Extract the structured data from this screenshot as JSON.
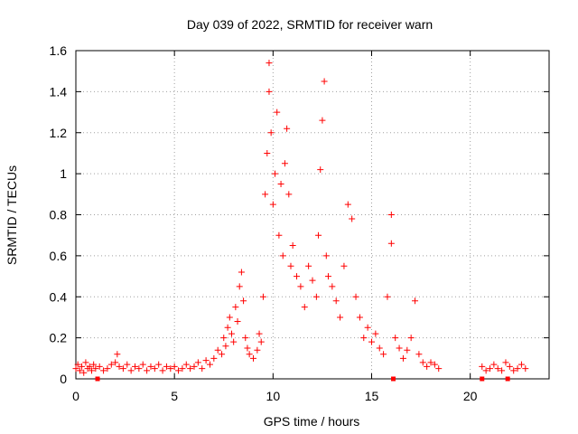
{
  "chart_data": {
    "type": "scatter",
    "title": "Day 039 of 2022, SRMTID for receiver warn",
    "xlabel": "GPS time / hours",
    "ylabel": "SRMTID / TECUs",
    "xlim": [
      0,
      24
    ],
    "ylim": [
      0,
      1.6
    ],
    "xticks": [
      0,
      5,
      10,
      15,
      20
    ],
    "yticks": [
      0,
      0.2,
      0.4,
      0.6,
      0.8,
      1,
      1.2,
      1.4,
      1.6
    ],
    "xtick_labels": [
      "0",
      "5",
      "10",
      "15",
      "20"
    ],
    "ytick_labels": [
      "0",
      "0.2",
      "0.4",
      "0.6",
      "0.8",
      "1",
      "1.2",
      "1.4",
      "1.6"
    ],
    "grid": true,
    "marker": "plus",
    "color": "#ff0000",
    "series": [
      {
        "name": "SRMTID",
        "points": [
          [
            0.0,
            0.05
          ],
          [
            0.1,
            0.07
          ],
          [
            0.2,
            0.04
          ],
          [
            0.3,
            0.06
          ],
          [
            0.4,
            0.03
          ],
          [
            0.5,
            0.08
          ],
          [
            0.6,
            0.05
          ],
          [
            0.7,
            0.06
          ],
          [
            0.8,
            0.04
          ],
          [
            0.9,
            0.07
          ],
          [
            1.0,
            0.05
          ],
          [
            1.2,
            0.06
          ],
          [
            1.4,
            0.04
          ],
          [
            1.6,
            0.05
          ],
          [
            1.8,
            0.07
          ],
          [
            2.0,
            0.08
          ],
          [
            2.1,
            0.12
          ],
          [
            2.2,
            0.06
          ],
          [
            2.4,
            0.05
          ],
          [
            2.6,
            0.07
          ],
          [
            2.8,
            0.04
          ],
          [
            3.0,
            0.06
          ],
          [
            3.2,
            0.05
          ],
          [
            3.4,
            0.07
          ],
          [
            3.6,
            0.04
          ],
          [
            3.8,
            0.06
          ],
          [
            4.0,
            0.05
          ],
          [
            4.2,
            0.07
          ],
          [
            4.4,
            0.04
          ],
          [
            4.6,
            0.06
          ],
          [
            4.8,
            0.05
          ],
          [
            5.0,
            0.06
          ],
          [
            5.2,
            0.04
          ],
          [
            5.4,
            0.05
          ],
          [
            5.6,
            0.07
          ],
          [
            5.8,
            0.05
          ],
          [
            6.0,
            0.06
          ],
          [
            6.2,
            0.08
          ],
          [
            6.4,
            0.05
          ],
          [
            6.6,
            0.09
          ],
          [
            6.8,
            0.07
          ],
          [
            7.0,
            0.1
          ],
          [
            7.2,
            0.14
          ],
          [
            7.4,
            0.12
          ],
          [
            7.5,
            0.2
          ],
          [
            7.6,
            0.16
          ],
          [
            7.7,
            0.25
          ],
          [
            7.8,
            0.3
          ],
          [
            7.9,
            0.22
          ],
          [
            8.0,
            0.18
          ],
          [
            8.1,
            0.35
          ],
          [
            8.2,
            0.28
          ],
          [
            8.3,
            0.45
          ],
          [
            8.4,
            0.52
          ],
          [
            8.5,
            0.38
          ],
          [
            8.6,
            0.2
          ],
          [
            8.7,
            0.15
          ],
          [
            8.8,
            0.12
          ],
          [
            9.0,
            0.1
          ],
          [
            9.2,
            0.14
          ],
          [
            9.3,
            0.22
          ],
          [
            9.4,
            0.18
          ],
          [
            9.5,
            0.4
          ],
          [
            9.6,
            0.9
          ],
          [
            9.7,
            1.1
          ],
          [
            9.8,
            1.4
          ],
          [
            9.8,
            1.54
          ],
          [
            9.9,
            1.2
          ],
          [
            10.0,
            0.85
          ],
          [
            10.1,
            1.0
          ],
          [
            10.2,
            1.3
          ],
          [
            10.3,
            0.7
          ],
          [
            10.4,
            0.95
          ],
          [
            10.5,
            0.6
          ],
          [
            10.6,
            1.05
          ],
          [
            10.7,
            1.22
          ],
          [
            10.8,
            0.9
          ],
          [
            10.9,
            0.55
          ],
          [
            11.0,
            0.65
          ],
          [
            11.2,
            0.5
          ],
          [
            11.4,
            0.45
          ],
          [
            11.6,
            0.35
          ],
          [
            11.8,
            0.55
          ],
          [
            12.0,
            0.48
          ],
          [
            12.2,
            0.4
          ],
          [
            12.3,
            0.7
          ],
          [
            12.4,
            1.02
          ],
          [
            12.5,
            1.26
          ],
          [
            12.6,
            1.45
          ],
          [
            12.7,
            0.6
          ],
          [
            12.8,
            0.5
          ],
          [
            13.0,
            0.45
          ],
          [
            13.2,
            0.38
          ],
          [
            13.4,
            0.3
          ],
          [
            13.6,
            0.55
          ],
          [
            13.8,
            0.85
          ],
          [
            14.0,
            0.78
          ],
          [
            14.2,
            0.4
          ],
          [
            14.4,
            0.3
          ],
          [
            14.6,
            0.2
          ],
          [
            14.8,
            0.25
          ],
          [
            15.0,
            0.18
          ],
          [
            15.2,
            0.22
          ],
          [
            15.4,
            0.15
          ],
          [
            15.6,
            0.12
          ],
          [
            15.8,
            0.4
          ],
          [
            16.0,
            0.8
          ],
          [
            16.0,
            0.66
          ],
          [
            16.2,
            0.2
          ],
          [
            16.4,
            0.15
          ],
          [
            16.6,
            0.1
          ],
          [
            16.8,
            0.14
          ],
          [
            17.0,
            0.2
          ],
          [
            17.2,
            0.38
          ],
          [
            17.4,
            0.12
          ],
          [
            17.6,
            0.08
          ],
          [
            17.8,
            0.06
          ],
          [
            18.0,
            0.08
          ],
          [
            18.2,
            0.07
          ],
          [
            18.4,
            0.05
          ],
          [
            20.6,
            0.06
          ],
          [
            20.8,
            0.04
          ],
          [
            21.0,
            0.05
          ],
          [
            21.2,
            0.07
          ],
          [
            21.4,
            0.05
          ],
          [
            21.6,
            0.04
          ],
          [
            21.8,
            0.08
          ],
          [
            22.0,
            0.06
          ],
          [
            22.2,
            0.04
          ],
          [
            22.4,
            0.05
          ],
          [
            22.6,
            0.07
          ],
          [
            22.8,
            0.05
          ]
        ]
      }
    ],
    "baseline_markers": [
      1.1,
      16.1,
      20.6,
      21.9
    ]
  }
}
